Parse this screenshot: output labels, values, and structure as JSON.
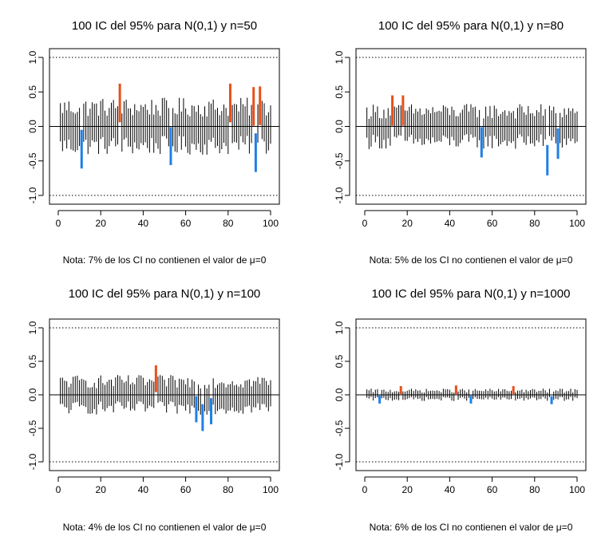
{
  "colors": {
    "interval": "#000000",
    "above_zero_miss": "#e8501a",
    "below_zero_miss": "#1f7fe6",
    "reference_line": "#000000",
    "bounds_line": "#000000"
  },
  "chart_data": [
    {
      "type": "interval",
      "title": "100 IC del 95% para N(0,1) y n=50",
      "note": "Nota: 7% de los CI no contienen el valor de μ=0",
      "xlim": [
        0,
        100
      ],
      "ylim": [
        -1,
        1
      ],
      "x_ticks": [
        0,
        20,
        40,
        60,
        80,
        100
      ],
      "y_ticks": [
        -1.0,
        -0.5,
        0.0,
        0.5,
        1.0
      ],
      "reference": 0,
      "bounds": [
        -1,
        1
      ],
      "n": 50,
      "center_amplitude": 0.14,
      "half_width": 0.277,
      "misses": [
        {
          "x": 11,
          "lower": -0.61,
          "upper": -0.05,
          "side": "below"
        },
        {
          "x": 29,
          "lower": 0.06,
          "upper": 0.62,
          "side": "above"
        },
        {
          "x": 53,
          "lower": -0.56,
          "upper": -0.01,
          "side": "below"
        },
        {
          "x": 81,
          "lower": 0.06,
          "upper": 0.62,
          "side": "above"
        },
        {
          "x": 92,
          "lower": 0.01,
          "upper": 0.57,
          "side": "above"
        },
        {
          "x": 93,
          "lower": -0.66,
          "upper": -0.1,
          "side": "below"
        },
        {
          "x": 95,
          "lower": 0.02,
          "upper": 0.58,
          "side": "above"
        }
      ]
    },
    {
      "type": "interval",
      "title": "100 IC del 95% para N(0,1) y n=80",
      "note": "Nota: 5% de los CI no contienen el valor de μ=0",
      "xlim": [
        0,
        100
      ],
      "ylim": [
        -1,
        1
      ],
      "x_ticks": [
        0,
        20,
        40,
        60,
        80,
        100
      ],
      "y_ticks": [
        -1.0,
        -0.5,
        0.0,
        0.5,
        1.0
      ],
      "reference": 0,
      "bounds": [
        -1,
        1
      ],
      "n": 80,
      "center_amplitude": 0.11,
      "half_width": 0.219,
      "misses": [
        {
          "x": 13,
          "lower": 0.01,
          "upper": 0.45,
          "side": "above"
        },
        {
          "x": 18,
          "lower": 0.01,
          "upper": 0.45,
          "side": "above"
        },
        {
          "x": 55,
          "lower": -0.45,
          "upper": -0.01,
          "side": "below"
        },
        {
          "x": 86,
          "lower": -0.71,
          "upper": -0.27,
          "side": "below"
        },
        {
          "x": 91,
          "lower": -0.47,
          "upper": -0.03,
          "side": "below"
        }
      ]
    },
    {
      "type": "interval",
      "title": "100 IC del 95% para N(0,1) y n=100",
      "note": "Nota: 4% de los CI no contienen el valor de μ=0",
      "xlim": [
        0,
        100
      ],
      "ylim": [
        -1,
        1
      ],
      "x_ticks": [
        0,
        20,
        40,
        60,
        80,
        100
      ],
      "y_ticks": [
        -1.0,
        -0.5,
        0.0,
        0.5,
        1.0
      ],
      "reference": 0,
      "bounds": [
        -1,
        1
      ],
      "n": 100,
      "center_amplitude": 0.1,
      "half_width": 0.196,
      "misses": [
        {
          "x": 46,
          "lower": 0.04,
          "upper": 0.44,
          "side": "above"
        },
        {
          "x": 65,
          "lower": -0.41,
          "upper": -0.02,
          "side": "below"
        },
        {
          "x": 68,
          "lower": -0.54,
          "upper": -0.14,
          "side": "below"
        },
        {
          "x": 72,
          "lower": -0.44,
          "upper": -0.05,
          "side": "below"
        }
      ]
    },
    {
      "type": "interval",
      "title": "100 IC del 95% para N(0,1) y n=1000",
      "note": "Nota: 6% de los CI no contienen el valor de μ=0",
      "xlim": [
        0,
        100
      ],
      "ylim": [
        -1,
        1
      ],
      "x_ticks": [
        0,
        20,
        40,
        60,
        80,
        100
      ],
      "y_ticks": [
        -1.0,
        -0.5,
        0.0,
        0.5,
        1.0
      ],
      "reference": 0,
      "bounds": [
        -1,
        1
      ],
      "n": 1000,
      "center_amplitude": 0.03,
      "half_width": 0.062,
      "misses": [
        {
          "x": 7,
          "lower": -0.13,
          "upper": -0.01,
          "side": "below"
        },
        {
          "x": 17,
          "lower": 0.01,
          "upper": 0.13,
          "side": "above"
        },
        {
          "x": 43,
          "lower": 0.01,
          "upper": 0.14,
          "side": "above"
        },
        {
          "x": 50,
          "lower": -0.13,
          "upper": -0.01,
          "side": "below"
        },
        {
          "x": 70,
          "lower": 0.01,
          "upper": 0.13,
          "side": "above"
        },
        {
          "x": 88,
          "lower": -0.14,
          "upper": -0.02,
          "side": "below"
        }
      ]
    }
  ]
}
